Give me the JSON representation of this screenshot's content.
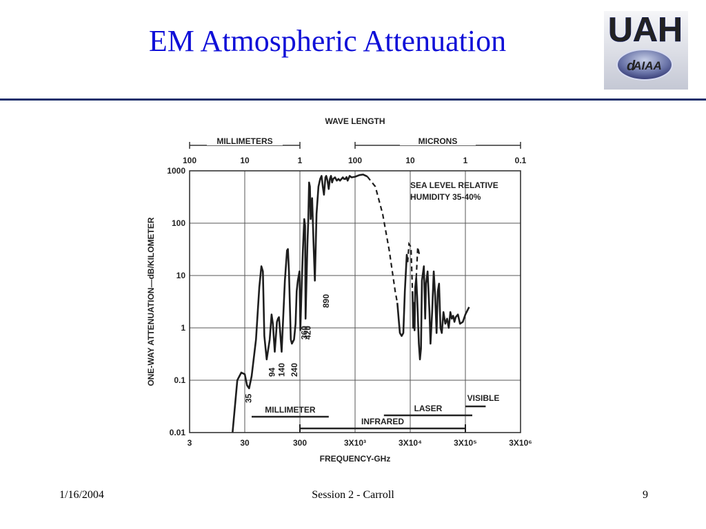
{
  "slide": {
    "title": "EM Atmospheric Attenuation",
    "logo_text": "UAH",
    "logo_badge": "AIAA",
    "logo_badge_prefix": "d",
    "accent_color": "#1010d8",
    "rule_color": "#1a2f6b"
  },
  "footer": {
    "date": "1/16/2004",
    "session": "Session 2 - Carroll",
    "page": "9"
  },
  "chart_data": {
    "type": "line",
    "scale": "log-log",
    "top_axis": {
      "title": "WAVE LENGTH",
      "ticks": [
        {
          "at_ghz": 3,
          "label": "100"
        },
        {
          "at_ghz": 30,
          "label": "10"
        },
        {
          "at_ghz": 300,
          "label": "1"
        },
        {
          "at_ghz": 3000,
          "label": "100"
        },
        {
          "at_ghz": 30000,
          "label": "10"
        },
        {
          "at_ghz": 300000,
          "label": "1"
        },
        {
          "at_ghz": 3000000,
          "label": "0.1"
        }
      ],
      "ranges": [
        {
          "label": "MILLIMETERS",
          "from_ghz": 3,
          "to_ghz": 300
        },
        {
          "label": "MICRONS",
          "from_ghz": 3000,
          "to_ghz": 3000000
        }
      ]
    },
    "xlabel": "FREQUENCY-GHz",
    "x_ticks": [
      {
        "value": 3,
        "label": "3"
      },
      {
        "value": 30,
        "label": "30"
      },
      {
        "value": 300,
        "label": "300"
      },
      {
        "value": 3000,
        "label": "3X10³"
      },
      {
        "value": 30000,
        "label": "3X10⁴"
      },
      {
        "value": 300000,
        "label": "3X10⁵"
      },
      {
        "value": 3000000,
        "label": "3X10⁶"
      }
    ],
    "xlim": [
      3,
      3000000
    ],
    "ylabel": "ONE-WAY ATTENUATION—dB/KILOMETER",
    "y_ticks": [
      {
        "value": 0.01,
        "label": "0.01"
      },
      {
        "value": 0.1,
        "label": "0.1"
      },
      {
        "value": 1,
        "label": "1"
      },
      {
        "value": 10,
        "label": "10"
      },
      {
        "value": 100,
        "label": "100"
      },
      {
        "value": 1000,
        "label": "1000"
      }
    ],
    "ylim": [
      0.01,
      1000
    ],
    "grid": true,
    "annotation": [
      "SEA LEVEL RELATIVE",
      "HUMIDITY 35-40%"
    ],
    "window_labels": [
      {
        "label": "35",
        "x": 35
      },
      {
        "label": "94",
        "x": 94
      },
      {
        "label": "140",
        "x": 140
      },
      {
        "label": "240",
        "x": 240
      },
      {
        "label": "360",
        "x": 360
      },
      {
        "label": "420",
        "x": 420
      },
      {
        "label": "890",
        "x": 890
      }
    ],
    "bands": [
      {
        "label": "MILLIMETER",
        "from": 40,
        "to": 1000
      },
      {
        "label": "INFRARED",
        "from": 300,
        "to": 300000
      },
      {
        "label": "LASER",
        "from": 10000,
        "to": 400000
      },
      {
        "label": "VISIBLE",
        "from": 300000,
        "to": 700000
      }
    ],
    "series_solid": [
      [
        [
          18,
          0.01
        ],
        [
          22,
          0.1
        ],
        [
          26,
          0.14
        ],
        [
          30,
          0.13
        ],
        [
          33,
          0.08
        ],
        [
          36,
          0.07
        ],
        [
          40,
          0.12
        ],
        [
          48,
          0.6
        ],
        [
          55,
          6
        ],
        [
          60,
          15
        ],
        [
          64,
          12
        ],
        [
          68,
          0.7
        ],
        [
          75,
          0.25
        ],
        [
          85,
          0.6
        ],
        [
          92,
          1.8
        ],
        [
          97,
          1.2
        ],
        [
          105,
          0.35
        ],
        [
          115,
          1.3
        ],
        [
          120,
          1.5
        ],
        [
          125,
          1.6
        ],
        [
          130,
          1
        ],
        [
          140,
          0.35
        ],
        [
          160,
          8
        ],
        [
          175,
          30
        ],
        [
          182,
          32
        ],
        [
          190,
          12
        ],
        [
          205,
          0.6
        ],
        [
          215,
          0.5
        ],
        [
          235,
          0.6
        ],
        [
          250,
          1.2
        ],
        [
          262,
          5
        ],
        [
          275,
          8
        ],
        [
          295,
          12
        ],
        [
          305,
          0.9
        ],
        [
          325,
          8
        ],
        [
          340,
          30
        ],
        [
          360,
          120
        ],
        [
          372,
          90
        ],
        [
          380,
          1.5
        ],
        [
          410,
          40
        ],
        [
          425,
          110
        ],
        [
          440,
          600
        ],
        [
          455,
          500
        ],
        [
          470,
          120
        ],
        [
          500,
          300
        ],
        [
          530,
          40
        ],
        [
          560,
          8
        ],
        [
          600,
          150
        ],
        [
          650,
          500
        ],
        [
          700,
          700
        ],
        [
          740,
          800
        ],
        [
          780,
          500
        ],
        [
          820,
          350
        ],
        [
          870,
          750
        ],
        [
          900,
          800
        ],
        [
          950,
          650
        ],
        [
          1000,
          450
        ],
        [
          1050,
          700
        ],
        [
          1100,
          800
        ],
        [
          1150,
          600
        ],
        [
          1200,
          700
        ],
        [
          1300,
          750
        ],
        [
          1400,
          650
        ],
        [
          1500,
          700
        ],
        [
          1600,
          650
        ],
        [
          1700,
          700
        ],
        [
          1800,
          750
        ],
        [
          1900,
          700
        ],
        [
          2000,
          700
        ],
        [
          2100,
          760
        ],
        [
          2200,
          650
        ],
        [
          2400,
          800
        ],
        [
          2600,
          750
        ],
        [
          3000,
          770
        ],
        [
          3600,
          830
        ],
        [
          4200,
          850
        ],
        [
          5000,
          780
        ]
      ],
      [
        [
          17500,
          3
        ],
        [
          18500,
          1.5
        ],
        [
          19500,
          0.8
        ],
        [
          21000,
          0.7
        ],
        [
          22500,
          0.8
        ],
        [
          24000,
          5
        ],
        [
          26000,
          25
        ],
        [
          27000,
          18
        ]
      ],
      [
        [
          33000,
          5
        ],
        [
          34000,
          1
        ],
        [
          35000,
          3
        ],
        [
          36000,
          0.9
        ],
        [
          37000,
          6
        ],
        [
          38500,
          9
        ],
        [
          40000,
          4
        ],
        [
          43000,
          0.5
        ],
        [
          45000,
          0.25
        ],
        [
          47000,
          0.4
        ],
        [
          49000,
          8
        ],
        [
          53000,
          15
        ],
        [
          56000,
          1.5
        ],
        [
          58000,
          7
        ],
        [
          62000,
          12
        ],
        [
          67000,
          2
        ],
        [
          70000,
          0.5
        ],
        [
          75000,
          2
        ],
        [
          80000,
          12
        ],
        [
          85000,
          4
        ],
        [
          90000,
          0.8
        ],
        [
          95000,
          5
        ],
        [
          100000,
          7
        ],
        [
          106000,
          1
        ],
        [
          112000,
          0.8
        ],
        [
          120000,
          2
        ],
        [
          130000,
          1.2
        ],
        [
          140000,
          1.5
        ],
        [
          150000,
          1
        ],
        [
          160000,
          2
        ],
        [
          170000,
          1.5
        ],
        [
          180000,
          1.7
        ],
        [
          190000,
          1.3
        ],
        [
          200000,
          1.6
        ],
        [
          220000,
          1.8
        ],
        [
          240000,
          1.2
        ],
        [
          270000,
          1.3
        ],
        [
          300000,
          1.8
        ],
        [
          350000,
          2.5
        ]
      ]
    ],
    "series_dashed": [
      [
        [
          5000,
          780
        ],
        [
          7000,
          500
        ],
        [
          9500,
          150
        ],
        [
          12500,
          30
        ],
        [
          16000,
          5
        ],
        [
          17500,
          3
        ]
      ],
      [
        [
          27000,
          18
        ],
        [
          28500,
          40
        ],
        [
          31000,
          35
        ],
        [
          33000,
          5
        ]
      ],
      [
        [
          38500,
          9
        ],
        [
          41000,
          35
        ],
        [
          44000,
          25
        ]
      ]
    ]
  }
}
